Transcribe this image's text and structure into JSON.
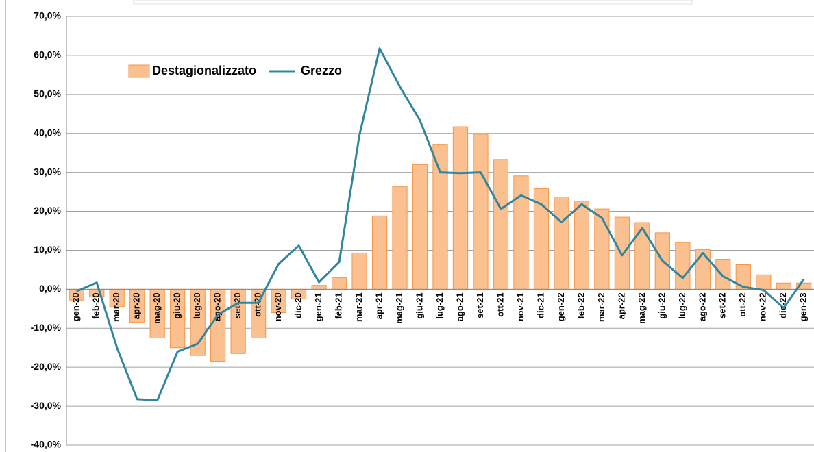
{
  "chart_data": {
    "type": "bar_line",
    "categories": [
      "gen-20",
      "feb-20",
      "mar-20",
      "apr-20",
      "mag-20",
      "giu-20",
      "lug-20",
      "ago-20",
      "set-20",
      "ott-20",
      "nov-20",
      "dic-20",
      "gen-21",
      "feb-21",
      "mar-21",
      "apr-21",
      "mag-21",
      "giu-21",
      "lug-21",
      "ago-21",
      "set-21",
      "ott-21",
      "nov-21",
      "dic-21",
      "gen-22",
      "feb-22",
      "mar-22",
      "apr-22",
      "mag-22",
      "giu-22",
      "lug-22",
      "ago-22",
      "set-22",
      "ott-22",
      "nov-22",
      "dic-22",
      "gen-23"
    ],
    "series": [
      {
        "name": "Destagionalizzato",
        "type": "bar",
        "color": "#fac090",
        "stroke": "#f79646",
        "values": [
          -2.8,
          -2,
          -4.5,
          -8.5,
          -12.5,
          -15,
          -17,
          -18.5,
          -16.5,
          -12.5,
          -6,
          -2.5,
          1,
          3,
          9.3,
          18.8,
          26.3,
          32,
          37.2,
          41.7,
          39.8,
          33.3,
          29.1,
          25.8,
          23.7,
          22.6,
          20.6,
          18.5,
          17.1,
          14.5,
          12,
          10.2,
          7.7,
          6.3,
          3.7,
          1.6,
          1.6
        ]
      },
      {
        "name": "Grezzo",
        "type": "line",
        "color": "#31859c",
        "values": [
          -0.5,
          1.7,
          -15,
          -28.2,
          -28.5,
          -16,
          -14,
          -6.5,
          -3.5,
          -3.5,
          6.5,
          11.2,
          1.8,
          7,
          39.5,
          61.8,
          52,
          43.3,
          30,
          29.8,
          30,
          20.6,
          24.1,
          21.8,
          17.2,
          21.8,
          18.3,
          8.7,
          15.7,
          7.3,
          2.9,
          9.3,
          3.3,
          0.6,
          -0.2,
          -4.8,
          2.6
        ]
      }
    ],
    "ylim": [
      -40,
      70
    ],
    "yticks": [
      {
        "value": -40,
        "label": "-40,0%"
      },
      {
        "value": -30,
        "label": "-30,0%"
      },
      {
        "value": -20,
        "label": "-20,0%"
      },
      {
        "value": -10,
        "label": "-10,0%"
      },
      {
        "value": 0,
        "label": "0,0%"
      },
      {
        "value": 10,
        "label": "10,0%"
      },
      {
        "value": 20,
        "label": "20,0%"
      },
      {
        "value": 30,
        "label": "30,0%"
      },
      {
        "value": 40,
        "label": "40,0%"
      },
      {
        "value": 50,
        "label": "50,0%"
      },
      {
        "value": 60,
        "label": "60,0%"
      },
      {
        "value": 70,
        "label": "70,0%"
      }
    ],
    "grid": true,
    "legend": "top-left"
  }
}
